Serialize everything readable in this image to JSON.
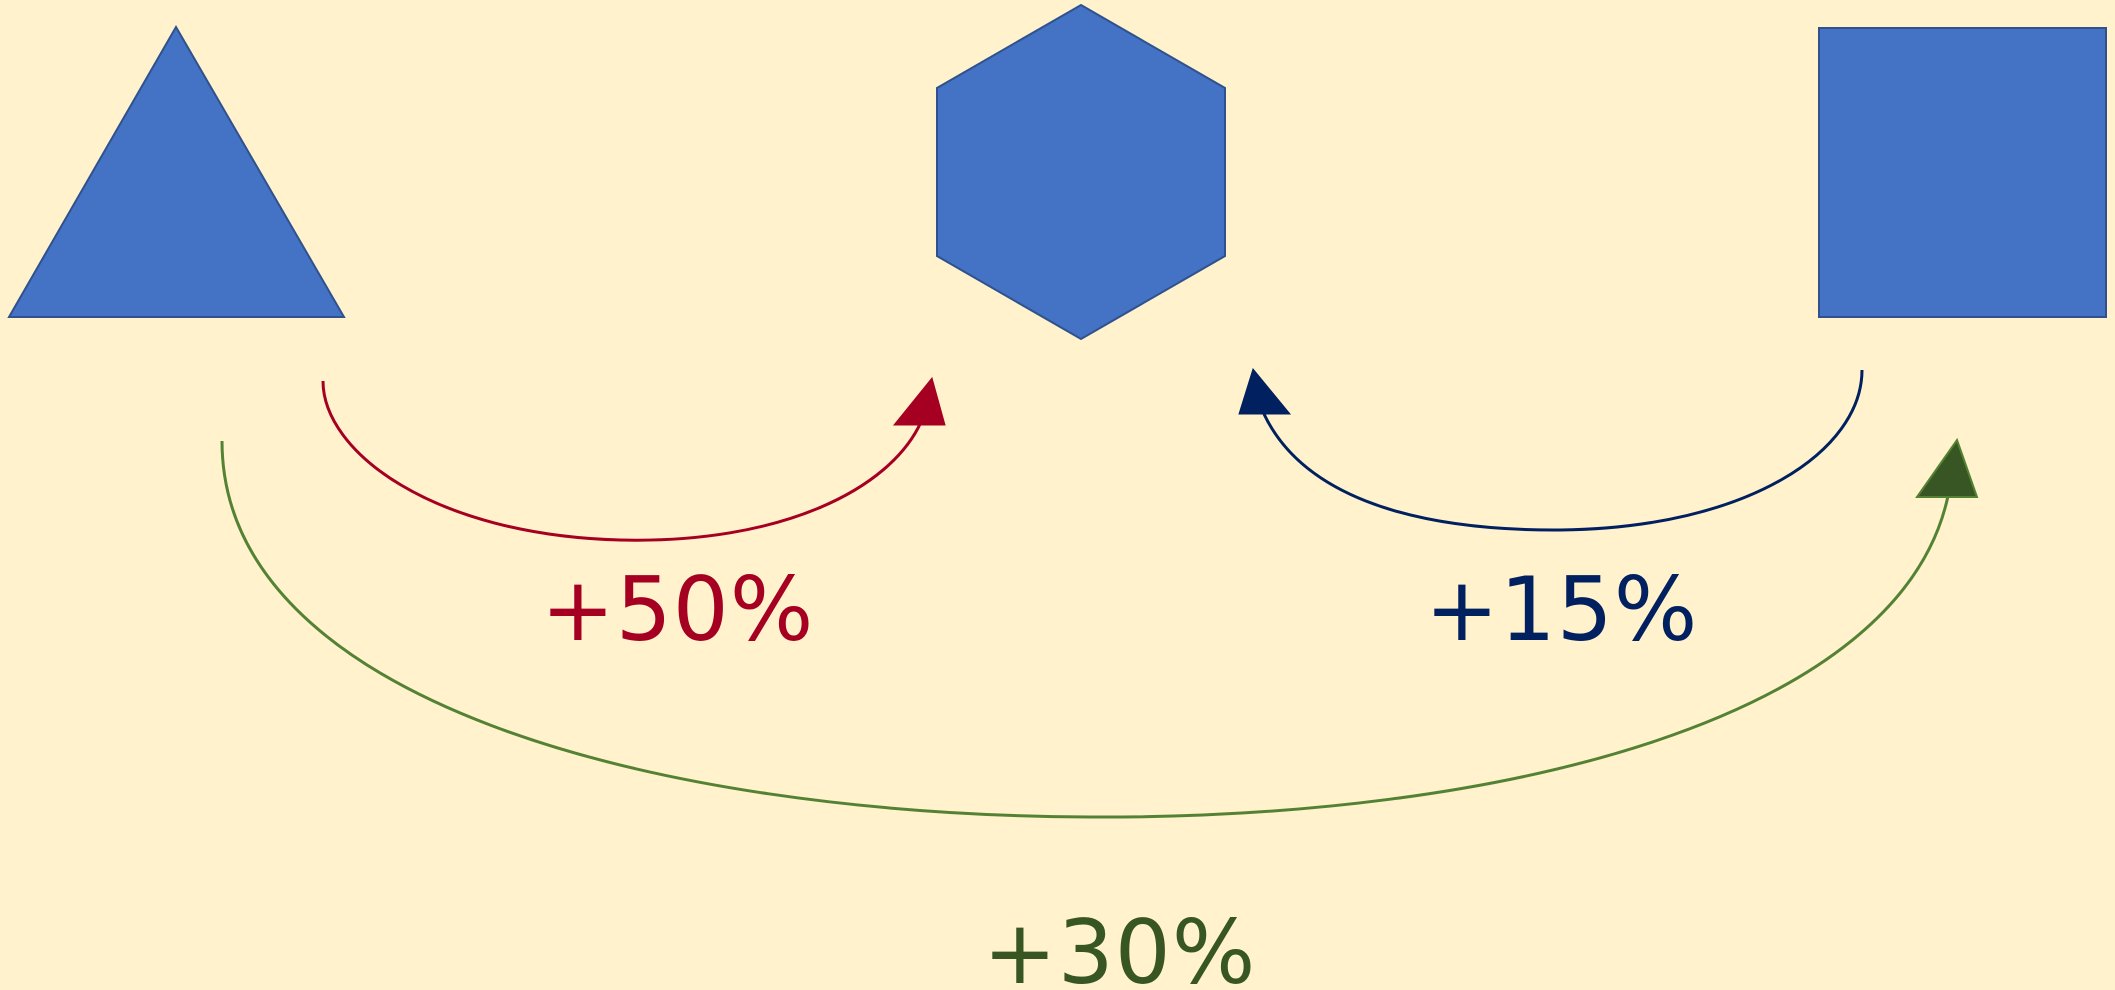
{
  "colors": {
    "background": "#FFF2CC",
    "shape_fill": "#4472C4",
    "shape_stroke": "#2F528F",
    "red": "#A50021",
    "navy": "#002060",
    "green": "#548235",
    "green_dark": "#375623"
  },
  "shapes": [
    {
      "id": "triangle",
      "kind": "triangle"
    },
    {
      "id": "hexagon",
      "kind": "hexagon"
    },
    {
      "id": "square",
      "kind": "square"
    }
  ],
  "arrows": [
    {
      "from": "triangle",
      "to": "hexagon",
      "color": "red",
      "label": "+50%"
    },
    {
      "from": "square",
      "to": "hexagon",
      "color": "navy",
      "label": "+15%"
    },
    {
      "from": "triangle",
      "to": "square",
      "color": "green",
      "label": "+30%"
    }
  ]
}
